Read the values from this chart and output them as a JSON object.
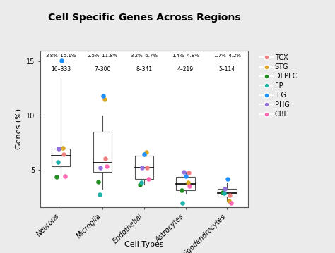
{
  "title": "Cell Specific Genes Across Regions",
  "xlabel": "Cell Types",
  "ylabel": "Genes (%)",
  "categories": [
    "Neurons",
    "Microglia",
    "Endothelial",
    "Astrocytes",
    "Oligodendrocytes"
  ],
  "range_labels": [
    "3.8%–15.1%",
    "2.5%–11.8%",
    "3.2%–6.7%",
    "1.4%–4.8%",
    "1.7%–4.2%"
  ],
  "count_labels": [
    "16–333",
    "7–300",
    "8–341",
    "4–219",
    "5–114"
  ],
  "boxplot_stats": [
    {
      "med": 6.3,
      "q1": 5.3,
      "q3": 6.9,
      "whislo": 4.5,
      "whishi": 13.5
    },
    {
      "med": 5.6,
      "q1": 4.8,
      "q3": 8.5,
      "whislo": 3.2,
      "whishi": 10.0
    },
    {
      "med": 5.2,
      "q1": 4.1,
      "q3": 6.3,
      "whislo": 3.6,
      "whishi": 6.5
    },
    {
      "med": 3.7,
      "q1": 3.1,
      "q3": 4.3,
      "whislo": 2.8,
      "whishi": 4.8
    },
    {
      "med": 2.8,
      "q1": 2.5,
      "q3": 3.2,
      "whislo": 2.1,
      "whishi": 3.8
    }
  ],
  "dot_data": {
    "Neurons": {
      "TCX": 6.4,
      "STG": 7.0,
      "DLPFC": 4.3,
      "FP": 5.7,
      "IFG": 15.1,
      "PHG": 6.9,
      "CBE": 4.4
    },
    "Microglia": {
      "TCX": 6.0,
      "STG": 11.5,
      "DLPFC": 3.9,
      "FP": 2.7,
      "IFG": 11.8,
      "PHG": 5.2,
      "CBE": 5.3
    },
    "Endothelial": {
      "TCX": 5.2,
      "STG": 6.6,
      "DLPFC": 3.6,
      "FP": 3.8,
      "IFG": 6.4,
      "PHG": 5.2,
      "CBE": 4.1
    },
    "Astrocytes": {
      "TCX": 4.7,
      "STG": 3.8,
      "DLPFC": 3.1,
      "FP": 1.9,
      "IFG": 4.4,
      "PHG": 4.8,
      "CBE": 3.5
    },
    "Oligodendrocytes": {
      "TCX": 2.6,
      "STG": 2.1,
      "DLPFC": 2.9,
      "FP": 2.8,
      "IFG": 4.1,
      "PHG": 3.2,
      "CBE": 1.9
    }
  },
  "region_colors": {
    "TCX": "#F08080",
    "STG": "#DAA520",
    "DLPFC": "#228B22",
    "FP": "#20B2AA",
    "IFG": "#1E90FF",
    "PHG": "#9370DB",
    "CBE": "#FF69B4"
  },
  "ylim": [
    1.5,
    16.0
  ],
  "yticks": [
    5,
    10,
    15
  ],
  "bg_color": "#ebebeb",
  "box_width": 0.45
}
